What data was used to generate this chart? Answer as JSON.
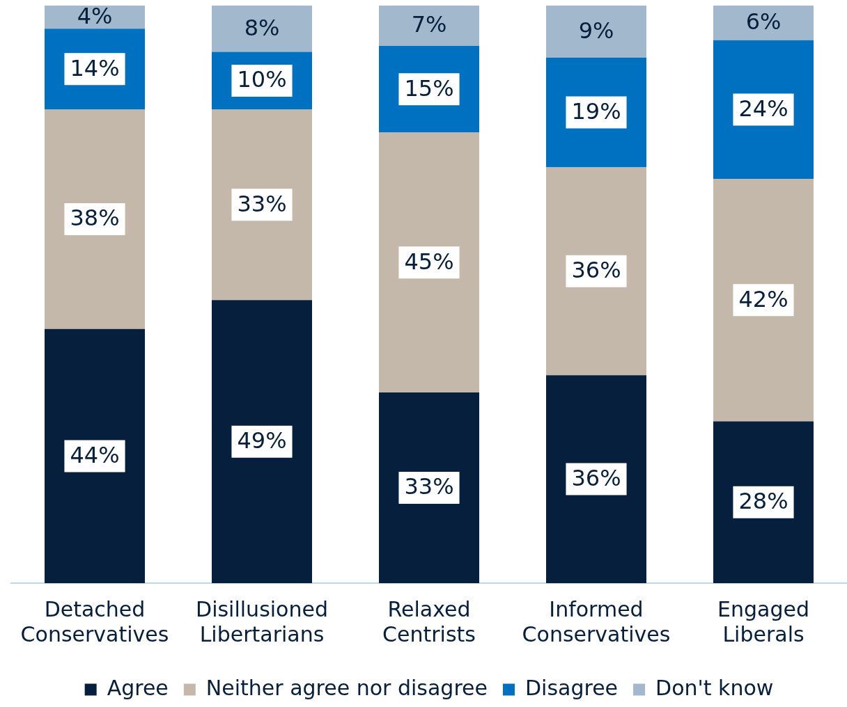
{
  "chart_data": {
    "type": "bar",
    "stacked": true,
    "categories": [
      "Detached Conservatives",
      "Disillusioned Libertarians",
      "Relaxed Centrists",
      "Informed Conservatives",
      "Engaged Liberals"
    ],
    "series": [
      {
        "name": "Agree",
        "color": "#061f3d",
        "values": [
          44,
          49,
          33,
          36,
          28
        ],
        "value_labels": [
          "44%",
          "49%",
          "33%",
          "36%",
          "28%"
        ]
      },
      {
        "name": "Neither agree nor disagree",
        "color": "#c4b8aa",
        "values": [
          38,
          33,
          45,
          36,
          42
        ],
        "value_labels": [
          "38%",
          "33%",
          "45%",
          "36%",
          "42%"
        ]
      },
      {
        "name": "Disagree",
        "color": "#0070c0",
        "values": [
          14,
          10,
          15,
          19,
          24
        ],
        "value_labels": [
          "14%",
          "10%",
          "15%",
          "19%",
          "24%"
        ]
      },
      {
        "name": "Don't know",
        "color": "#a2b8cc",
        "values": [
          4,
          8,
          7,
          9,
          6
        ],
        "value_labels": [
          "4%",
          "8%",
          "7%",
          "9%",
          "6%"
        ]
      }
    ],
    "ylim": [
      0,
      100
    ],
    "grid": false,
    "legend": "bottom",
    "tick_labels": "x"
  }
}
